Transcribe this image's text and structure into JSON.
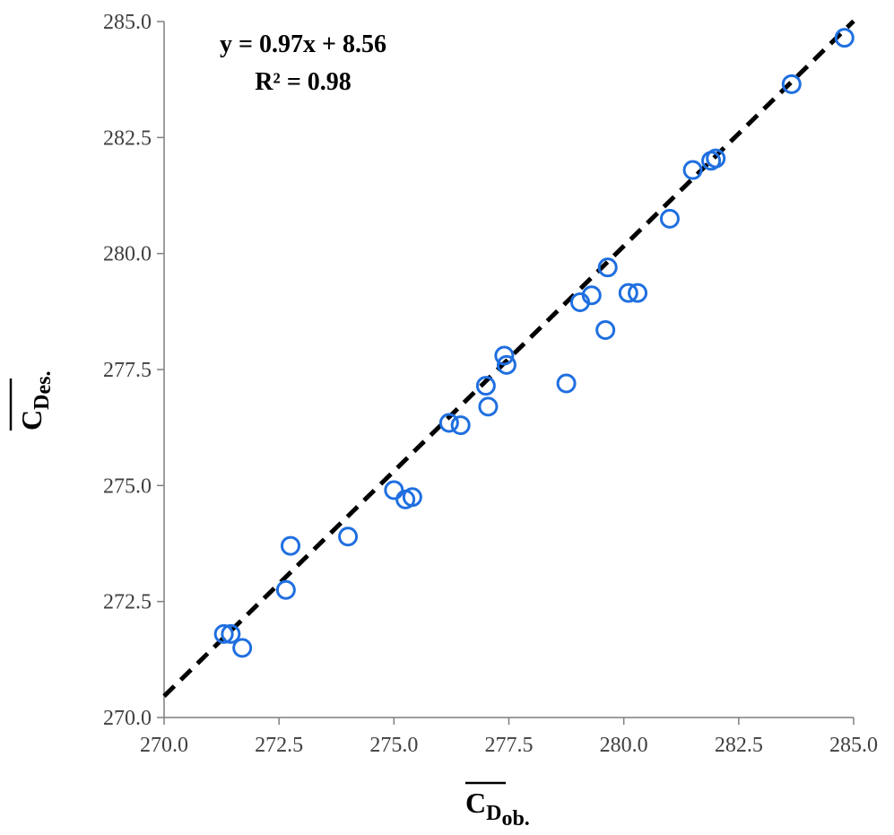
{
  "chart_data": {
    "type": "scatter",
    "xlim": [
      270,
      285
    ],
    "ylim": [
      270,
      285
    ],
    "x_ticks": [
      "270.0",
      "272.5",
      "275.0",
      "277.5",
      "280.0",
      "282.5",
      "285.0"
    ],
    "y_ticks": [
      "270.0",
      "272.5",
      "275.0",
      "277.5",
      "280.0",
      "282.5",
      "285.0"
    ],
    "xlabel": {
      "main": "C",
      "sub": "D",
      "suffix": "ob."
    },
    "ylabel": {
      "main": "C",
      "sub": "D",
      "suffix": "es."
    },
    "grid": false,
    "marker_color": "#1f6fe0",
    "trendline": {
      "slope": 0.97,
      "intercept": 8.56,
      "style": "dashed",
      "color": "#000000",
      "x_range": [
        270,
        285
      ]
    },
    "annotations": {
      "equation": "y = 0.97x + 8.56",
      "r2": "R² = 0.98"
    },
    "points": [
      {
        "x": 271.3,
        "y": 271.8
      },
      {
        "x": 271.45,
        "y": 271.8
      },
      {
        "x": 271.7,
        "y": 271.5
      },
      {
        "x": 272.65,
        "y": 272.75
      },
      {
        "x": 272.75,
        "y": 273.7
      },
      {
        "x": 274.0,
        "y": 273.9
      },
      {
        "x": 275.0,
        "y": 274.9
      },
      {
        "x": 275.25,
        "y": 274.7
      },
      {
        "x": 275.4,
        "y": 274.75
      },
      {
        "x": 276.2,
        "y": 276.35
      },
      {
        "x": 276.45,
        "y": 276.3
      },
      {
        "x": 277.0,
        "y": 277.15
      },
      {
        "x": 277.05,
        "y": 276.7
      },
      {
        "x": 277.4,
        "y": 277.8
      },
      {
        "x": 277.45,
        "y": 277.6
      },
      {
        "x": 278.75,
        "y": 277.2
      },
      {
        "x": 279.05,
        "y": 278.95
      },
      {
        "x": 279.3,
        "y": 279.1
      },
      {
        "x": 279.6,
        "y": 278.35
      },
      {
        "x": 279.65,
        "y": 279.7
      },
      {
        "x": 280.1,
        "y": 279.15
      },
      {
        "x": 280.3,
        "y": 279.15
      },
      {
        "x": 281.0,
        "y": 280.75
      },
      {
        "x": 281.5,
        "y": 281.8
      },
      {
        "x": 281.9,
        "y": 282.0
      },
      {
        "x": 282.0,
        "y": 282.05
      },
      {
        "x": 283.65,
        "y": 283.65
      },
      {
        "x": 284.8,
        "y": 284.65
      }
    ]
  }
}
